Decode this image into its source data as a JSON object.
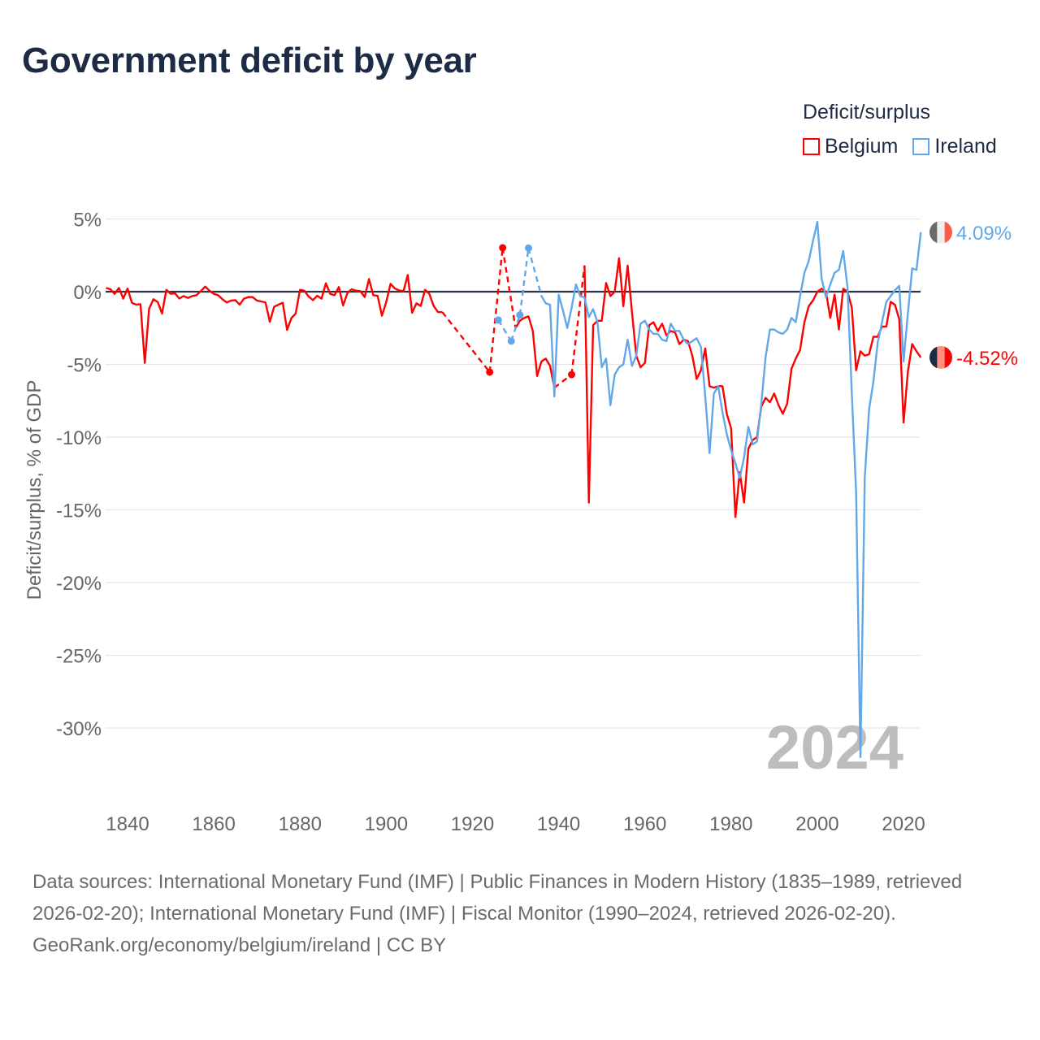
{
  "title": "Government deficit by year",
  "legend": {
    "title": "Deficit/surplus",
    "items": [
      {
        "name": "Belgium",
        "color": "#ff0000"
      },
      {
        "name": "Ireland",
        "color": "#62a8e8"
      }
    ]
  },
  "watermark_year": "2024",
  "footer": {
    "sources": "Data sources: International Monetary Fund (IMF) | Public Finances in Modern History (1835–1989, retrieved 2026-02-20); International Monetary Fund (IMF) | Fiscal Monitor (1990–2024, retrieved 2026-02-20).",
    "credit": "GeoRank.org/economy/belgium/ireland | CC BY"
  },
  "chart_data": {
    "type": "line",
    "title": "Government deficit by year",
    "xlabel": "",
    "ylabel": "Deficit/surplus, % of GDP",
    "xlim": [
      1835,
      2024
    ],
    "ylim": [
      -35,
      5
    ],
    "xticks": [
      1840,
      1860,
      1880,
      1900,
      1920,
      1940,
      1960,
      1980,
      2000,
      2020
    ],
    "xtick_labels": [
      "1840",
      "1860",
      "1880",
      "1900",
      "1920",
      "1940",
      "1960",
      "1980",
      "2000",
      "2020"
    ],
    "yticks": [
      5,
      0,
      -5,
      -10,
      -15,
      -20,
      -25,
      -30
    ],
    "ytick_labels": [
      "5%",
      "0%",
      "-5%",
      "-10%",
      "-15%",
      "-20%",
      "-25%",
      "-30%"
    ],
    "grid": true,
    "legend_position": "top-right",
    "series": [
      {
        "name": "Belgium",
        "color": "#ff0000",
        "end_label": "-4.52%",
        "flag_colors": [
          "#1d2b45",
          "#ff8f80",
          "#ff0000"
        ],
        "points": [
          [
            1835,
            0.26
          ],
          [
            1836,
            0.17
          ],
          [
            1837,
            -0.15
          ],
          [
            1838,
            0.26
          ],
          [
            1839,
            -0.48
          ],
          [
            1840,
            0.22
          ],
          [
            1841,
            -0.76
          ],
          [
            1842,
            -0.89
          ],
          [
            1843,
            -0.86
          ],
          [
            1844,
            -4.9
          ],
          [
            1845,
            -1.17
          ],
          [
            1846,
            -0.52
          ],
          [
            1847,
            -0.71
          ],
          [
            1848,
            -1.5
          ],
          [
            1849,
            0.13
          ],
          [
            1850,
            -0.15
          ],
          [
            1851,
            -0.11
          ],
          [
            1852,
            -0.47
          ],
          [
            1853,
            -0.3
          ],
          [
            1854,
            -0.43
          ],
          [
            1855,
            -0.3
          ],
          [
            1856,
            -0.24
          ],
          [
            1857,
            0.04
          ],
          [
            1858,
            0.35
          ],
          [
            1859,
            0.07
          ],
          [
            1860,
            -0.15
          ],
          [
            1861,
            -0.24
          ],
          [
            1862,
            -0.52
          ],
          [
            1863,
            -0.74
          ],
          [
            1864,
            -0.61
          ],
          [
            1865,
            -0.58
          ],
          [
            1866,
            -0.89
          ],
          [
            1867,
            -0.48
          ],
          [
            1868,
            -0.37
          ],
          [
            1869,
            -0.37
          ],
          [
            1870,
            -0.61
          ],
          [
            1871,
            -0.67
          ],
          [
            1872,
            -0.74
          ],
          [
            1873,
            -2.07
          ],
          [
            1874,
            -1.04
          ],
          [
            1875,
            -0.89
          ],
          [
            1876,
            -0.76
          ],
          [
            1877,
            -2.63
          ],
          [
            1878,
            -1.82
          ],
          [
            1879,
            -1.5
          ],
          [
            1880,
            0.13
          ],
          [
            1881,
            0.07
          ],
          [
            1882,
            -0.33
          ],
          [
            1883,
            -0.58
          ],
          [
            1884,
            -0.28
          ],
          [
            1885,
            -0.48
          ],
          [
            1886,
            0.58
          ],
          [
            1887,
            -0.15
          ],
          [
            1888,
            -0.24
          ],
          [
            1889,
            0.32
          ],
          [
            1890,
            -0.95
          ],
          [
            1891,
            -0.09
          ],
          [
            1892,
            0.17
          ],
          [
            1893,
            0.07
          ],
          [
            1894,
            0.04
          ],
          [
            1895,
            -0.37
          ],
          [
            1896,
            0.87
          ],
          [
            1897,
            -0.24
          ],
          [
            1898,
            -0.28
          ],
          [
            1899,
            -1.65
          ],
          [
            1900,
            -0.71
          ],
          [
            1901,
            0.54
          ],
          [
            1902,
            0.22
          ],
          [
            1903,
            0.09
          ],
          [
            1904,
            0.04
          ],
          [
            1905,
            1.15
          ],
          [
            1906,
            -1.45
          ],
          [
            1907,
            -0.8
          ],
          [
            1908,
            -0.98
          ],
          [
            1909,
            0.13
          ],
          [
            1910,
            -0.15
          ],
          [
            1911,
            -0.98
          ],
          [
            1912,
            -1.4
          ],
          [
            1913,
            -1.4
          ],
          [
            1924,
            -5.53
          ],
          [
            1927,
            3.02
          ],
          [
            1930,
            -2.5
          ],
          [
            1931,
            -2.0
          ],
          [
            1932,
            -1.8
          ],
          [
            1933,
            -1.7
          ],
          [
            1934,
            -2.7
          ],
          [
            1935,
            -5.8
          ],
          [
            1936,
            -4.8
          ],
          [
            1937,
            -4.6
          ],
          [
            1938,
            -5.1
          ],
          [
            1939,
            -6.6
          ],
          [
            1943,
            -5.7
          ],
          [
            1946,
            1.8
          ],
          [
            1947,
            -14.5
          ],
          [
            1948,
            -2.3
          ],
          [
            1949,
            -2.0
          ],
          [
            1950,
            -2.0
          ],
          [
            1951,
            0.6
          ],
          [
            1952,
            -0.3
          ],
          [
            1953,
            0.0
          ],
          [
            1954,
            2.3
          ],
          [
            1955,
            -1.0
          ],
          [
            1956,
            1.8
          ],
          [
            1957,
            -1.4
          ],
          [
            1958,
            -4.4
          ],
          [
            1959,
            -5.2
          ],
          [
            1960,
            -4.9
          ],
          [
            1961,
            -2.3
          ],
          [
            1962,
            -2.1
          ],
          [
            1963,
            -2.7
          ],
          [
            1964,
            -2.2
          ],
          [
            1965,
            -3.0
          ],
          [
            1966,
            -2.7
          ],
          [
            1967,
            -2.8
          ],
          [
            1968,
            -3.6
          ],
          [
            1969,
            -3.3
          ],
          [
            1970,
            -3.4
          ],
          [
            1971,
            -4.4
          ],
          [
            1972,
            -6.0
          ],
          [
            1973,
            -5.4
          ],
          [
            1974,
            -3.9
          ],
          [
            1975,
            -6.5
          ],
          [
            1976,
            -6.6
          ],
          [
            1977,
            -6.5
          ],
          [
            1978,
            -6.5
          ],
          [
            1979,
            -8.4
          ],
          [
            1980,
            -9.4
          ],
          [
            1981,
            -15.5
          ],
          [
            1982,
            -12.4
          ],
          [
            1983,
            -14.5
          ],
          [
            1984,
            -10.8
          ],
          [
            1985,
            -10.2
          ],
          [
            1986,
            -10.0
          ],
          [
            1987,
            -7.9
          ],
          [
            1988,
            -7.3
          ],
          [
            1989,
            -7.6
          ],
          [
            1990,
            -7.0
          ],
          [
            1991,
            -7.8
          ],
          [
            1992,
            -8.4
          ],
          [
            1993,
            -7.7
          ],
          [
            1994,
            -5.3
          ],
          [
            1995,
            -4.6
          ],
          [
            1996,
            -4.0
          ],
          [
            1997,
            -2.1
          ],
          [
            1998,
            -1.0
          ],
          [
            1999,
            -0.6
          ],
          [
            2000,
            0.0
          ],
          [
            2001,
            0.2
          ],
          [
            2002,
            0.0
          ],
          [
            2003,
            -1.8
          ],
          [
            2004,
            -0.2
          ],
          [
            2005,
            -2.6
          ],
          [
            2006,
            0.2
          ],
          [
            2007,
            0.0
          ],
          [
            2008,
            -1.1
          ],
          [
            2009,
            -5.4
          ],
          [
            2010,
            -4.1
          ],
          [
            2011,
            -4.4
          ],
          [
            2012,
            -4.3
          ],
          [
            2013,
            -3.1
          ],
          [
            2014,
            -3.1
          ],
          [
            2015,
            -2.4
          ],
          [
            2016,
            -2.4
          ],
          [
            2017,
            -0.7
          ],
          [
            2018,
            -0.9
          ],
          [
            2019,
            -1.9
          ],
          [
            2020,
            -9.0
          ],
          [
            2021,
            -5.5
          ],
          [
            2022,
            -3.6
          ],
          [
            2023,
            -4.1
          ],
          [
            2024,
            -4.52
          ]
        ]
      },
      {
        "name": "Ireland",
        "color": "#62a8e8",
        "end_label": "4.09%",
        "flag_colors": [
          "#6b6b6b",
          "#eeeeee",
          "#ff5a4a"
        ],
        "points": [
          [
            1926,
            -1.95
          ],
          [
            1929,
            -3.4
          ],
          [
            1931,
            -1.6
          ],
          [
            1933,
            3.0
          ],
          [
            1936,
            -0.3
          ],
          [
            1937,
            -0.8
          ],
          [
            1938,
            -0.9
          ],
          [
            1939,
            -7.2
          ],
          [
            1940,
            -0.2
          ],
          [
            1941,
            -1.3
          ],
          [
            1942,
            -2.5
          ],
          [
            1943,
            -1.1
          ],
          [
            1944,
            0.5
          ],
          [
            1945,
            -0.3
          ],
          [
            1946,
            -0.4
          ],
          [
            1947,
            -1.75
          ],
          [
            1948,
            -1.2
          ],
          [
            1949,
            -2.1
          ],
          [
            1950,
            -5.2
          ],
          [
            1951,
            -4.6
          ],
          [
            1952,
            -7.8
          ],
          [
            1953,
            -5.7
          ],
          [
            1954,
            -5.2
          ],
          [
            1955,
            -5.0
          ],
          [
            1956,
            -3.3
          ],
          [
            1957,
            -5.1
          ],
          [
            1958,
            -4.4
          ],
          [
            1959,
            -2.2
          ],
          [
            1960,
            -2.0
          ],
          [
            1961,
            -2.6
          ],
          [
            1962,
            -2.9
          ],
          [
            1963,
            -2.9
          ],
          [
            1964,
            -3.3
          ],
          [
            1965,
            -3.4
          ],
          [
            1966,
            -2.2
          ],
          [
            1967,
            -2.7
          ],
          [
            1968,
            -2.7
          ],
          [
            1969,
            -3.3
          ],
          [
            1970,
            -3.6
          ],
          [
            1971,
            -3.4
          ],
          [
            1972,
            -3.2
          ],
          [
            1973,
            -3.8
          ],
          [
            1974,
            -7.2
          ],
          [
            1975,
            -11.1
          ],
          [
            1976,
            -7.0
          ],
          [
            1977,
            -6.5
          ],
          [
            1978,
            -8.3
          ],
          [
            1979,
            -9.8
          ],
          [
            1980,
            -10.9
          ],
          [
            1981,
            -11.8
          ],
          [
            1982,
            -12.8
          ],
          [
            1983,
            -11.4
          ],
          [
            1984,
            -9.3
          ],
          [
            1985,
            -10.5
          ],
          [
            1986,
            -10.3
          ],
          [
            1987,
            -7.7
          ],
          [
            1988,
            -4.5
          ],
          [
            1989,
            -2.6
          ],
          [
            1990,
            -2.6
          ],
          [
            1991,
            -2.8
          ],
          [
            1992,
            -2.9
          ],
          [
            1993,
            -2.6
          ],
          [
            1994,
            -1.8
          ],
          [
            1995,
            -2.1
          ],
          [
            1996,
            -0.3
          ],
          [
            1997,
            1.3
          ],
          [
            1998,
            2.1
          ],
          [
            1999,
            3.5
          ],
          [
            2000,
            4.8
          ],
          [
            2001,
            0.9
          ],
          [
            2002,
            -0.4
          ],
          [
            2003,
            0.5
          ],
          [
            2004,
            1.3
          ],
          [
            2005,
            1.5
          ],
          [
            2006,
            2.8
          ],
          [
            2007,
            0.3
          ],
          [
            2008,
            -7.0
          ],
          [
            2009,
            -13.8
          ],
          [
            2010,
            -32.0
          ],
          [
            2011,
            -12.8
          ],
          [
            2012,
            -8.1
          ],
          [
            2013,
            -6.2
          ],
          [
            2014,
            -3.5
          ],
          [
            2015,
            -2.1
          ],
          [
            2016,
            -0.7
          ],
          [
            2017,
            -0.3
          ],
          [
            2018,
            0.1
          ],
          [
            2019,
            0.4
          ],
          [
            2020,
            -4.8
          ],
          [
            2021,
            -1.5
          ],
          [
            2022,
            1.6
          ],
          [
            2023,
            1.5
          ],
          [
            2024,
            4.09
          ]
        ]
      }
    ]
  }
}
